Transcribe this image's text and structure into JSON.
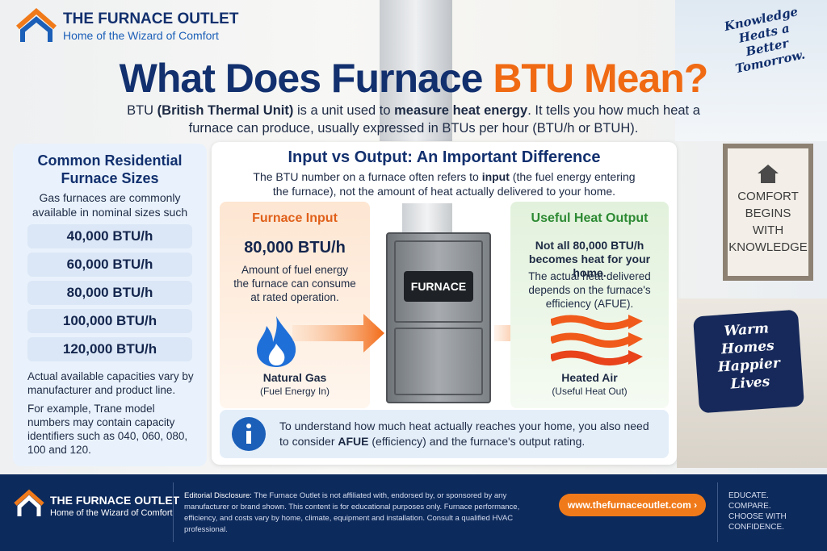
{
  "header": {
    "brand": "THE FURNACE OUTLET",
    "tagline": "Home of the Wizard of Comfort",
    "slogan": [
      "Knowledge",
      "Heats a",
      "Better Tomorrow."
    ]
  },
  "title": {
    "main": "What Does Furnace",
    "accent": "BTU Mean?"
  },
  "intro": [
    {
      "text": "BTU ",
      "bold": false
    },
    {
      "text": "(British Thermal Unit)",
      "bold": true
    },
    {
      "text": " is a unit used to ",
      "bold": false
    },
    {
      "text": "measure heat energy",
      "bold": true
    },
    {
      "text": ". It tells you how much heat a furnace can produce, usually expressed in BTUs per hour (BTU/h or BTUH).",
      "bold": false
    }
  ],
  "sidebar": {
    "title": "Common Residential Furnace Sizes",
    "lead": "Gas furnaces are commonly available in nominal sizes such as:",
    "sizes": [
      "40,000 BTU/h",
      "60,000 BTU/h",
      "80,000 BTU/h",
      "100,000 BTU/h",
      "120,000 BTU/h"
    ],
    "note1": "Actual available capacities vary by manufacturer and product line.",
    "note2": "For example, Trane model numbers may contain capacity identifiers such as 040, 060, 080, 100 and 120."
  },
  "panel": {
    "title": "Input vs Output: An Important Difference",
    "subtitle": [
      {
        "text": "The BTU number on a furnace often refers to ",
        "bold": false
      },
      {
        "text": "input",
        "bold": true
      },
      {
        "text": " (the fuel energy entering the furnace), not the amount of heat actually delivered to your home.",
        "bold": false
      }
    ],
    "input": {
      "heading": "Furnace Input",
      "value": "80,000 BTU/h",
      "desc": "Amount of fuel energy the furnace can consume at rated operation.",
      "icon_label": "Natural Gas",
      "icon_sub": "(Fuel Energy In)"
    },
    "furnace_label": "FURNACE",
    "output": {
      "heading": "Useful Heat Output",
      "lead": "Not all 80,000 BTU/h becomes heat for your home.",
      "desc": "The actual heat delivered depends on the furnace's efficiency (AFUE).",
      "icon_label": "Heated Air",
      "icon_sub": "(Useful Heat Out)"
    },
    "info": [
      {
        "text": "To understand how much heat actually reaches your home, you also need to consider ",
        "bold": false
      },
      {
        "text": "AFUE",
        "bold": true
      },
      {
        "text": " (efficiency) and the furnace's output rating.",
        "bold": false
      }
    ]
  },
  "wall_sign": [
    "COMFORT",
    "BEGINS",
    "WITH",
    "KNOWLEDGE"
  ],
  "pillow": [
    "Warm",
    "Homes",
    "Happier",
    "Lives"
  ],
  "footer": {
    "brand": "THE FURNACE OUTLET",
    "tagline": "Home of the Wizard of Comfort",
    "disclosure_label": "Editorial Disclosure:",
    "disclosure": "The Furnace Outlet is not affiliated with, endorsed by, or sponsored by any manufacturer or brand shown. This content is for educational purposes only. Furnace performance, efficiency, and costs vary by home, climate, equipment and installation. Consult a qualified HVAC professional.",
    "url": "www.thefurnaceoutlet.com  ›",
    "taglines": [
      "EDUCATE.",
      "COMPARE.",
      "CHOOSE WITH CONFIDENCE."
    ]
  }
}
